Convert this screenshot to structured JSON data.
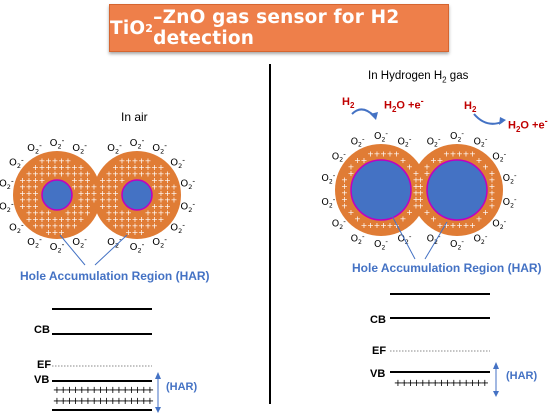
{
  "title": {
    "pre": "TiO",
    "sub": "2",
    "post": " –ZnO gas sensor for H2 detection"
  },
  "ghost_text": "",
  "air": {
    "label": "In air",
    "har": "Hole Accumulation Region (HAR)",
    "cb": "CB",
    "ef": "EF",
    "vb": "VB",
    "har_band": "(HAR)"
  },
  "hydrogen": {
    "label_pre": "In Hydrogen H",
    "label_sub": "2",
    "label_post": " gas",
    "har": "Hole Accumulation Region (HAR)",
    "cb": "CB",
    "ef": "EF",
    "vb": "VB",
    "har_band": "(HAR)",
    "gas_h2": "H",
    "gas_h2_sub": "2",
    "gas_h2o": "H",
    "gas_h2o_sub": "2",
    "gas_h2o_post": "O +e",
    "gas_h2o_sup": "-",
    "gas_h2_b": "H",
    "gas_h2_b_sub": "2",
    "gas_h2o_b": "H",
    "gas_h2o_b_sub": "2",
    "gas_h2o_b_post": "O +e",
    "gas_h2o_b_sup": "-"
  },
  "o2_ion": {
    "base": "O",
    "sub": "2",
    "sup": "-"
  },
  "plus_glyph": "+",
  "colors": {
    "banner": "#ee7f4a",
    "shell": "#e07c35",
    "core": "#4472c4",
    "core_ring": "#c000c0",
    "har_text": "#4472c4",
    "gas_text": "#c00000",
    "divider": "#000000"
  }
}
